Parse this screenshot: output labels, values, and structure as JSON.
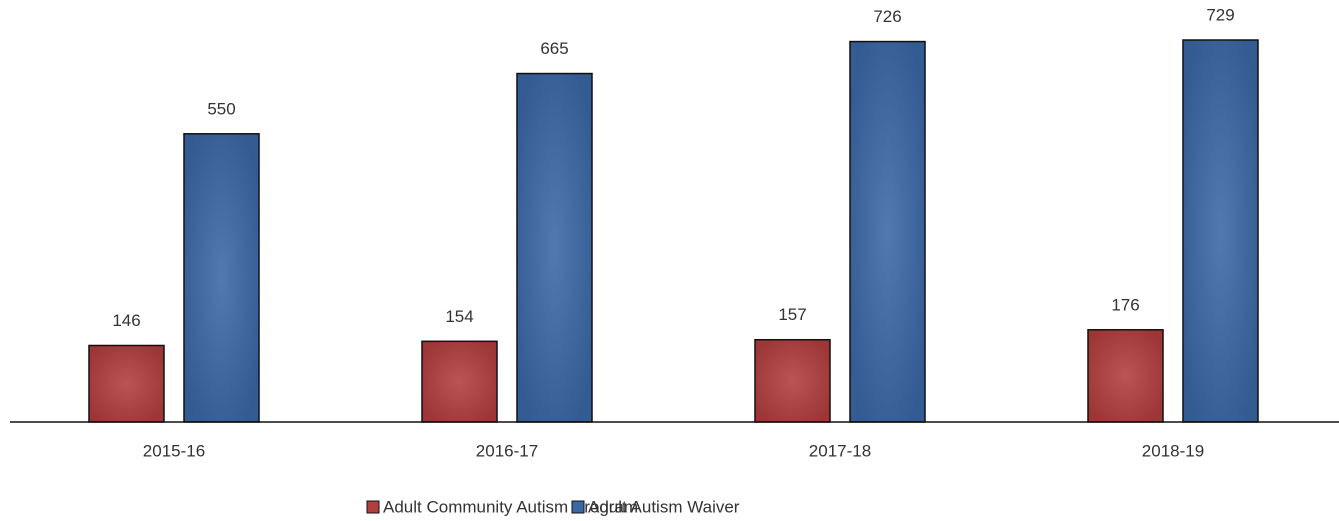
{
  "chart_data": {
    "type": "bar",
    "categories": [
      "2015-16",
      "2016-17",
      "2017-18",
      "2018-19"
    ],
    "series": [
      {
        "name": "Adult Community Autism Program",
        "color": "#b23e3e",
        "values": [
          146,
          154,
          157,
          176
        ]
      },
      {
        "name": "Adult Autism Waiver",
        "color": "#3a68a6",
        "values": [
          550,
          665,
          726,
          729
        ]
      }
    ]
  }
}
